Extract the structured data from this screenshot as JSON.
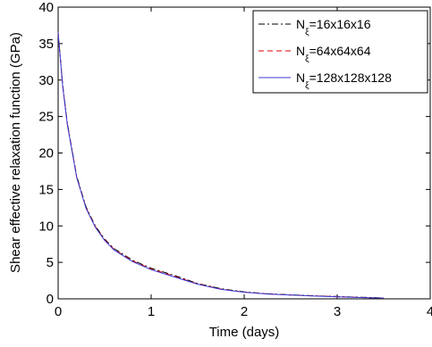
{
  "chart_data": {
    "type": "line",
    "xlabel": "Time (days)",
    "ylabel": "Shear effective relaxation function (GPa)",
    "xlim": [
      0,
      4
    ],
    "ylim": [
      0,
      40
    ],
    "xticks": [
      "0",
      "1",
      "2",
      "3",
      "4"
    ],
    "yticks": [
      "0",
      "5",
      "10",
      "15",
      "20",
      "25",
      "30",
      "35",
      "40"
    ],
    "grid": false,
    "legend_position": "top-right",
    "x": [
      0,
      0.05,
      0.1,
      0.2,
      0.3,
      0.4,
      0.5,
      0.6,
      0.8,
      1.0,
      1.25,
      1.5,
      1.75,
      2.0,
      2.25,
      2.5,
      2.75,
      3.0,
      3.25,
      3.5
    ],
    "series": [
      {
        "label_main": "N",
        "label_sub": "ξ",
        "label_rest": "=16x16x16",
        "color": "#000000",
        "dash": "7 3 2 3",
        "values": [
          36.5,
          29.2,
          24.0,
          16.8,
          12.6,
          10.0,
          8.2,
          6.9,
          5.3,
          4.2,
          3.2,
          2.1,
          1.4,
          0.95,
          0.7,
          0.55,
          0.42,
          0.32,
          0.22,
          0.12
        ]
      },
      {
        "label_main": "N",
        "label_sub": "ξ",
        "label_rest": "=64x64x64",
        "color": "#dd0000",
        "dash": "6 4",
        "values": [
          36.5,
          29.1,
          23.9,
          16.7,
          12.5,
          9.9,
          8.1,
          6.8,
          5.2,
          4.1,
          3.1,
          2.05,
          1.35,
          0.92,
          0.68,
          0.53,
          0.4,
          0.3,
          0.2,
          0.1
        ]
      },
      {
        "label_main": "N",
        "label_sub": "ξ",
        "label_rest": "=128x128x128",
        "color": "#3b3bd8",
        "dash": "",
        "values": [
          36.5,
          29.0,
          23.8,
          16.6,
          12.4,
          9.8,
          8.0,
          6.7,
          5.1,
          4.0,
          3.0,
          2.0,
          1.3,
          0.9,
          0.66,
          0.51,
          0.38,
          0.28,
          0.18,
          0.08
        ]
      }
    ]
  }
}
